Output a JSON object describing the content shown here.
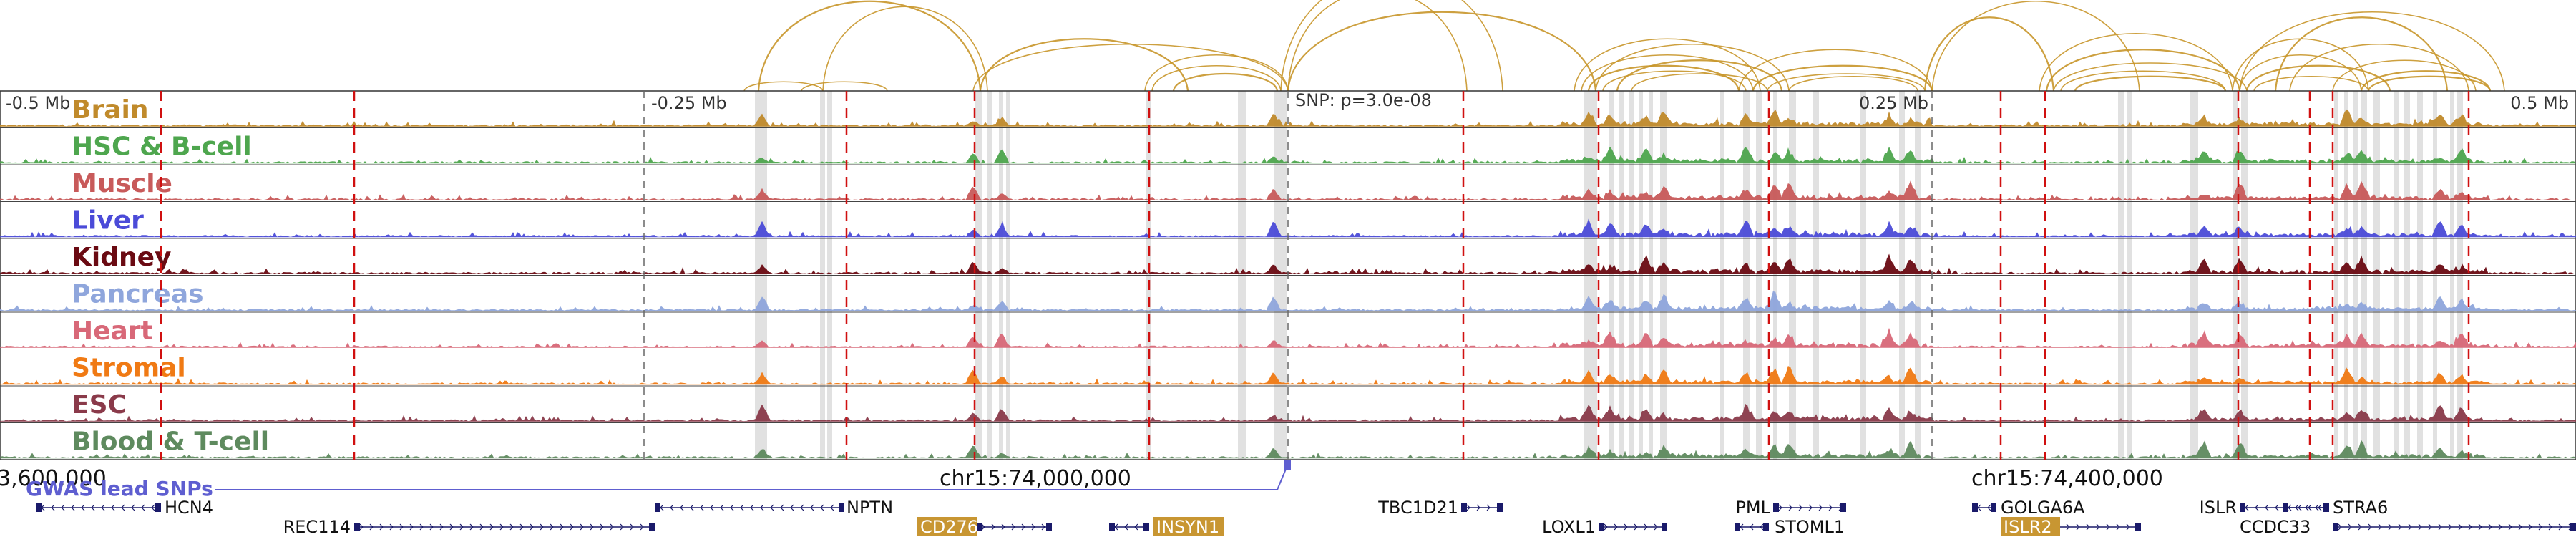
{
  "tracks": [
    {
      "name": "Brain",
      "color": "#c08a2b"
    },
    {
      "name": "HSC & B-cell",
      "color": "#4ea64e"
    },
    {
      "name": "Muscle",
      "color": "#c85a5a"
    },
    {
      "name": "Liver",
      "color": "#4b4bd8"
    },
    {
      "name": "Kidney",
      "color": "#6a0a12"
    },
    {
      "name": "Pancreas",
      "color": "#8fa6dc"
    },
    {
      "name": "Heart",
      "color": "#d86878"
    },
    {
      "name": "Stromal",
      "color": "#f07a14"
    },
    {
      "name": "ESC",
      "color": "#8a3a4a"
    },
    {
      "name": "Blood & T-cell",
      "color": "#5e8a5e"
    }
  ],
  "scale_labels": [
    "-0.5 Mb",
    "-0.25 Mb",
    "0.25 Mb",
    "0.5 Mb"
  ],
  "snp_label": "SNP: p=3.0e-08",
  "coordinates": [
    "3,600,000",
    "chr15:74,000,000",
    "chr15:74,400,000"
  ],
  "gwas_label": "GWAS lead SNPs",
  "genes": [
    {
      "name": "HCN4",
      "highlight": false
    },
    {
      "name": "NPTN",
      "highlight": false
    },
    {
      "name": "REC114",
      "highlight": false
    },
    {
      "name": "CD276",
      "highlight": true
    },
    {
      "name": "INSYN1",
      "highlight": true
    },
    {
      "name": "TBC1D21",
      "highlight": false
    },
    {
      "name": "LOXL1",
      "highlight": false
    },
    {
      "name": "PML",
      "highlight": false
    },
    {
      "name": "STOML1",
      "highlight": false
    },
    {
      "name": "GOLGA6A",
      "highlight": false
    },
    {
      "name": "ISLR2",
      "highlight": true
    },
    {
      "name": "ISLR",
      "highlight": false
    },
    {
      "name": "STRA6",
      "highlight": false
    },
    {
      "name": "CCDC33",
      "highlight": false
    }
  ],
  "colors": {
    "arc": "#c8962a",
    "red_line": "#d01010",
    "highlight_band": "#dcdcdc",
    "gwas": "#5e5ed0",
    "gene_box": "#1a1a6a",
    "gene_highlight": "#c89632"
  }
}
